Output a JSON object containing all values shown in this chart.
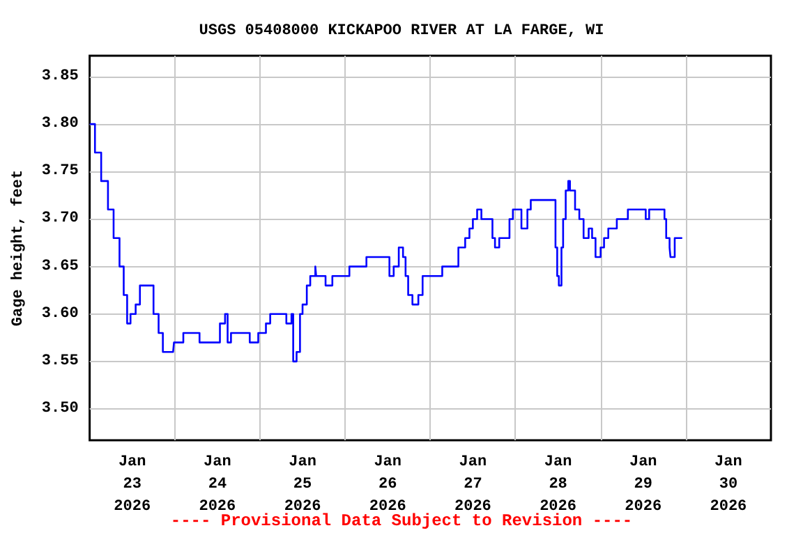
{
  "chart_data": {
    "type": "step",
    "title": "USGS 05408000 KICKAPOO RIVER AT LA FARGE, WI",
    "ylabel": "Gage height, feet",
    "annotations": [
      "---- Provisional Data Subject to Revision ----"
    ],
    "xlim": [
      "2026-01-23",
      "2026-01-31"
    ],
    "xticks": [
      {
        "value": "2026-01-23T12:00",
        "label": "Jan\n23\n2026"
      },
      {
        "value": "2026-01-24T12:00",
        "label": "Jan\n24\n2026"
      },
      {
        "value": "2026-01-25T12:00",
        "label": "Jan\n25\n2026"
      },
      {
        "value": "2026-01-26T12:00",
        "label": "Jan\n26\n2026"
      },
      {
        "value": "2026-01-27T12:00",
        "label": "Jan\n27\n2026"
      },
      {
        "value": "2026-01-28T12:00",
        "label": "Jan\n28\n2026"
      },
      {
        "value": "2026-01-29T12:00",
        "label": "Jan\n29\n2026"
      },
      {
        "value": "2026-01-30T12:00",
        "label": "Jan\n30\n2026"
      },
      {
        "value": "2026-01-24",
        "label": null
      },
      {
        "value": "2026-01-25",
        "label": null
      },
      {
        "value": "2026-01-26",
        "label": null
      },
      {
        "value": "2026-01-27",
        "label": null
      },
      {
        "value": "2026-01-28",
        "label": null
      },
      {
        "value": "2026-01-29",
        "label": null
      },
      {
        "value": "2026-01-30",
        "label": null
      }
    ],
    "ylim": [
      3.467,
      3.872
    ],
    "yticks": [
      {
        "value": 3.5,
        "label": "3.50"
      },
      3.55,
      {
        "value": 3.6,
        "label": "3.60"
      },
      3.65,
      {
        "value": 3.7,
        "label": "3.70"
      },
      3.75,
      {
        "value": 3.8,
        "label": "3.80"
      },
      3.85
    ],
    "grid": true,
    "marker": "none",
    "line_style": "solid",
    "series": [
      {
        "color": "#0000ff",
        "x": [
          "2026-01-23T00:15",
          "2026-01-23T01:30",
          "2026-01-23T03:15",
          "2026-01-23T05:10",
          "2026-01-23T06:45",
          "2026-01-23T08:25",
          "2026-01-23T09:36",
          "2026-01-23T10:34",
          "2026-01-23T11:31",
          "2026-01-23T12:58",
          "2026-01-23T14:10",
          "2026-01-23T16:34",
          "2026-01-23T18:00",
          "2026-01-23T19:26",
          "2026-01-23T20:38",
          "2026-01-23T23:31",
          "2026-01-23T23:46",
          "2026-01-24T02:24",
          "2026-01-24T06:14",
          "2026-01-24T06:58",
          "2026-01-24T11:46",
          "2026-01-24T12:43",
          "2026-01-24T14:10",
          "2026-01-24T14:53",
          "2026-01-24T15:50",
          "2026-01-24T19:55",
          "2026-01-24T21:07",
          "2026-01-24T23:31",
          "2026-01-25T01:41",
          "2026-01-25T02:53",
          "2026-01-25T07:26",
          "2026-01-25T08:53",
          "2026-01-25T09:22",
          "2026-01-25T10:19",
          "2026-01-25T11:17",
          "2026-01-25T12:00",
          "2026-01-25T13:12",
          "2026-01-25T14:10",
          "2026-01-25T15:36",
          "2026-01-25T15:50",
          "2026-01-25T17:46",
          "2026-01-25T18:29",
          "2026-01-25T20:24",
          "2026-01-26T00:14",
          "2026-01-26T01:12",
          "2026-01-26T05:31",
          "2026-01-26T06:00",
          "2026-01-26T11:31",
          "2026-01-26T12:29",
          "2026-01-26T13:41",
          "2026-01-26T15:07",
          "2026-01-26T16:19",
          "2026-01-26T17:02",
          "2026-01-26T17:46",
          "2026-01-26T18:58",
          "2026-01-26T20:38",
          "2026-01-26T21:50",
          "2026-01-27T02:38",
          "2026-01-27T03:22",
          "2026-01-27T06:29",
          "2026-01-27T07:55",
          "2026-01-27T09:50",
          "2026-01-27T11:02",
          "2026-01-27T12:00",
          "2026-01-27T13:12",
          "2026-01-27T14:24",
          "2026-01-27T16:34",
          "2026-01-27T17:31",
          "2026-01-27T18:14",
          "2026-01-27T19:26",
          "2026-01-27T21:22",
          "2026-01-27T22:19",
          "2026-01-27T23:17",
          "2026-01-28T00:43",
          "2026-01-28T01:41",
          "2026-01-28T02:38",
          "2026-01-28T03:22",
          "2026-01-28T04:19",
          "2026-01-28T10:48",
          "2026-01-28T11:17",
          "2026-01-28T11:46",
          "2026-01-28T12:14",
          "2026-01-28T12:58",
          "2026-01-28T13:26",
          "2026-01-28T14:10",
          "2026-01-28T14:53",
          "2026-01-28T15:22",
          "2026-01-28T16:48",
          "2026-01-28T18:00",
          "2026-01-28T19:12",
          "2026-01-28T20:38",
          "2026-01-28T21:36",
          "2026-01-28T22:34",
          "2026-01-29T00:00",
          "2026-01-29T00:58",
          "2026-01-29T02:10",
          "2026-01-29T03:50",
          "2026-01-29T04:34",
          "2026-01-29T06:58",
          "2026-01-29T07:41",
          "2026-01-29T12:14",
          "2026-01-29T12:43",
          "2026-01-29T13:41",
          "2026-01-29T16:34",
          "2026-01-29T18:00",
          "2026-01-29T18:29",
          "2026-01-29T19:26",
          "2026-01-29T19:41",
          "2026-01-29T20:53",
          "2026-01-29T22:48"
        ],
        "values": [
          3.8,
          3.77,
          3.74,
          3.71,
          3.68,
          3.65,
          3.62,
          3.59,
          3.6,
          3.61,
          3.63,
          3.63,
          3.6,
          3.58,
          3.56,
          3.56,
          3.57,
          3.58,
          3.58,
          3.57,
          3.57,
          3.59,
          3.6,
          3.57,
          3.58,
          3.58,
          3.57,
          3.58,
          3.59,
          3.6,
          3.59,
          3.6,
          3.55,
          3.56,
          3.6,
          3.61,
          3.63,
          3.64,
          3.65,
          3.64,
          3.64,
          3.63,
          3.64,
          3.64,
          3.65,
          3.65,
          3.66,
          3.66,
          3.64,
          3.65,
          3.67,
          3.66,
          3.64,
          3.62,
          3.61,
          3.62,
          3.64,
          3.64,
          3.65,
          3.65,
          3.67,
          3.68,
          3.69,
          3.7,
          3.71,
          3.7,
          3.7,
          3.68,
          3.67,
          3.68,
          3.68,
          3.7,
          3.71,
          3.71,
          3.69,
          3.69,
          3.71,
          3.72,
          3.72,
          3.67,
          3.64,
          3.63,
          3.67,
          3.7,
          3.73,
          3.74,
          3.73,
          3.71,
          3.7,
          3.68,
          3.69,
          3.68,
          3.66,
          3.67,
          3.68,
          3.69,
          3.69,
          3.7,
          3.7,
          3.71,
          3.71,
          3.7,
          3.71,
          3.71,
          3.7,
          3.68,
          3.67,
          3.66,
          3.68,
          3.68
        ]
      }
    ]
  }
}
